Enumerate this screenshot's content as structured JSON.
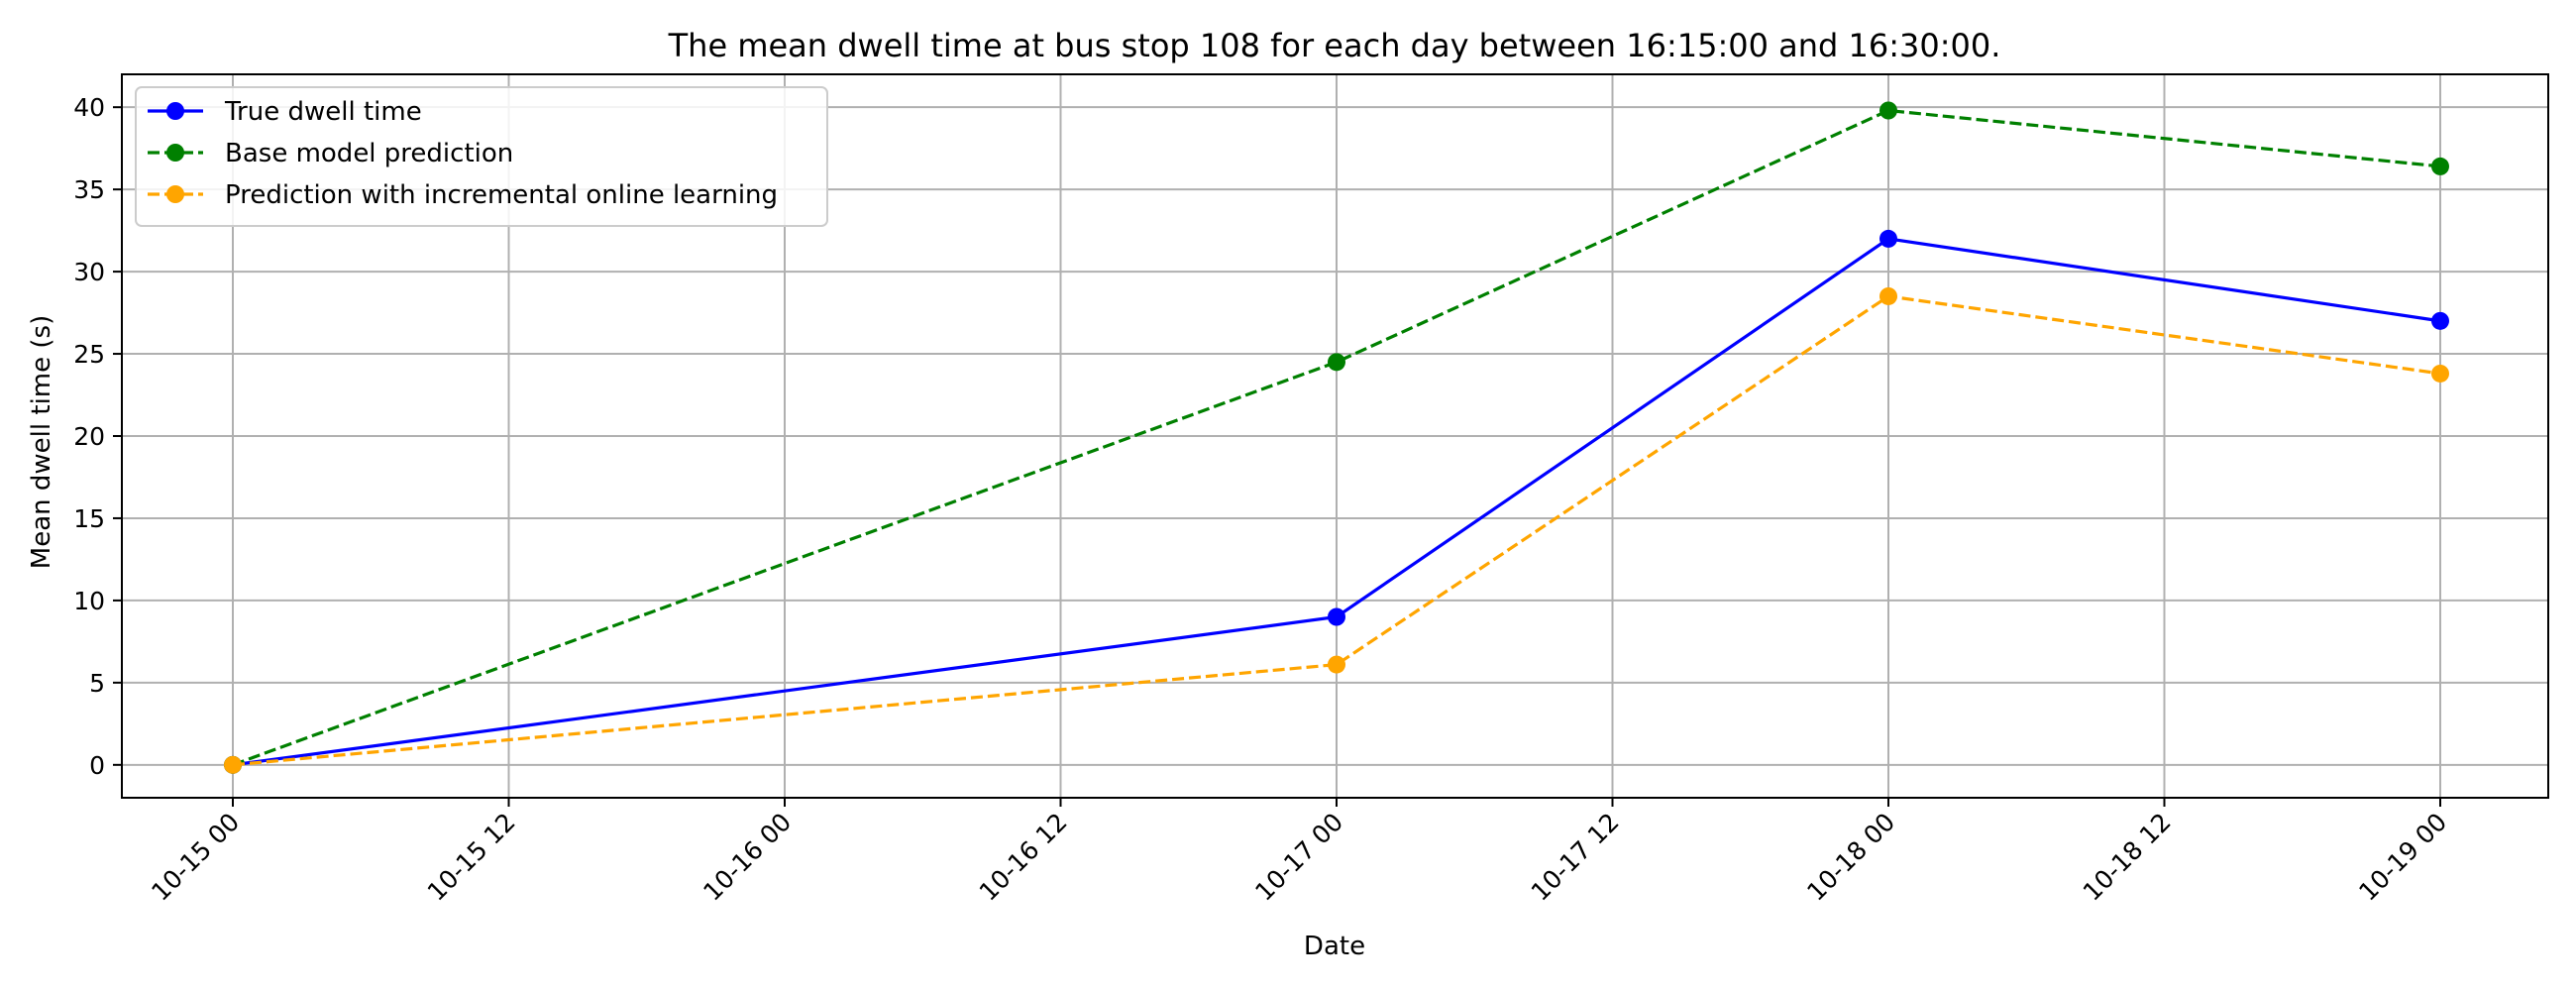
{
  "chart_data": {
    "type": "line",
    "title": "The mean dwell time at bus stop 108 for each day between 16:15:00 and 16:30:00.",
    "xlabel": "Date",
    "ylabel": "Mean dwell time (s)",
    "x": [
      "10-15 00",
      "10-17 00",
      "10-18 00",
      "10-19 00"
    ],
    "x_ticks": [
      "10-15 00",
      "10-15 12",
      "10-16 00",
      "10-16 12",
      "10-17 00",
      "10-17 12",
      "10-18 00",
      "10-18 12",
      "10-19 00"
    ],
    "y_ticks": [
      0,
      5,
      10,
      15,
      20,
      25,
      30,
      35,
      40
    ],
    "ylim": [
      -2,
      42
    ],
    "grid": true,
    "legend_position": "upper-left",
    "series": [
      {
        "name": "True dwell time",
        "color": "#0000ff",
        "linestyle": "solid",
        "marker": "circle",
        "values": [
          0,
          9,
          32,
          27
        ]
      },
      {
        "name": "Base model prediction",
        "color": "#008000",
        "linestyle": "dashed",
        "marker": "circle",
        "values": [
          0,
          24.5,
          39.8,
          36.4
        ]
      },
      {
        "name": "Prediction with incremental online learning",
        "color": "#ffa500",
        "linestyle": "dashed",
        "marker": "circle",
        "values": [
          0,
          6.1,
          28.5,
          23.8
        ]
      }
    ]
  }
}
